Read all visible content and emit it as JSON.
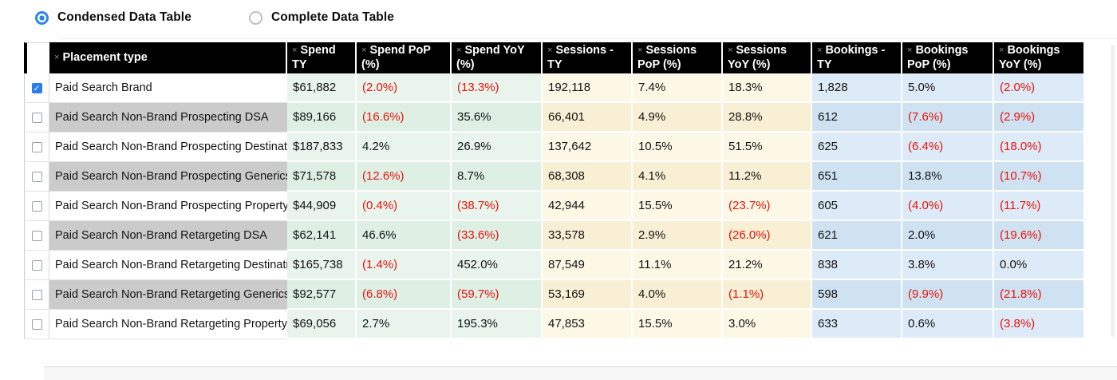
{
  "colors": {
    "accent_blue": "#2d87e9",
    "checkbox_blue": "#2b7de9",
    "negative_red": "#e8130c",
    "header_bg": "#000000",
    "spend_tint": "#e8f4ec",
    "sessions_tint": "#fdf8e6",
    "bookings_tint": "#dcebf7",
    "alt_row_gray": "#cbcbcb"
  },
  "icons": {
    "remove_column_icon": "×",
    "check_glyph": "✓"
  },
  "controls": {
    "options": [
      {
        "label": "Condensed Data Table",
        "selected": true
      },
      {
        "label": "Complete Data Table",
        "selected": false
      }
    ]
  },
  "table": {
    "columns": [
      "Placement type",
      "Spend TY",
      "Spend PoP (%)",
      "Spend YoY (%)",
      "Sessions - TY",
      "Sessions PoP (%)",
      "Sessions YoY (%)",
      "Bookings - TY",
      "Bookings PoP (%)",
      "Bookings YoY (%)"
    ],
    "rows": [
      {
        "checked": true,
        "name": "Paid Search Brand",
        "values": [
          "$61,882",
          "(2.0%)",
          "(13.3%)",
          "192,118",
          "7.4%",
          "18.3%",
          "1,828",
          "5.0%",
          "(2.0%)"
        ]
      },
      {
        "checked": false,
        "name": "Paid Search Non-Brand Prospecting DSA",
        "values": [
          "$89,166",
          "(16.6%)",
          "35.6%",
          "66,401",
          "4.9%",
          "28.8%",
          "612",
          "(7.6%)",
          "(2.9%)"
        ]
      },
      {
        "checked": false,
        "name": "Paid Search Non-Brand Prospecting Destination",
        "values": [
          "$187,833",
          "4.2%",
          "26.9%",
          "137,642",
          "10.5%",
          "51.5%",
          "625",
          "(6.4%)",
          "(18.0%)"
        ]
      },
      {
        "checked": false,
        "name": "Paid Search Non-Brand Prospecting Generics",
        "values": [
          "$71,578",
          "(12.6%)",
          "8.7%",
          "68,308",
          "4.1%",
          "11.2%",
          "651",
          "13.8%",
          "(10.7%)"
        ]
      },
      {
        "checked": false,
        "name": "Paid Search Non-Brand Prospecting Property",
        "values": [
          "$44,909",
          "(0.4%)",
          "(38.7%)",
          "42,944",
          "15.5%",
          "(23.7%)",
          "605",
          "(4.0%)",
          "(11.7%)"
        ]
      },
      {
        "checked": false,
        "name": "Paid Search Non-Brand Retargeting DSA",
        "values": [
          "$62,141",
          "46.6%",
          "(33.6%)",
          "33,578",
          "2.9%",
          "(26.0%)",
          "621",
          "2.0%",
          "(19.6%)"
        ]
      },
      {
        "checked": false,
        "name": "Paid Search Non-Brand Retargeting Destination",
        "values": [
          "$165,738",
          "(1.4%)",
          "452.0%",
          "87,549",
          "11.1%",
          "21.2%",
          "838",
          "3.8%",
          "0.0%"
        ]
      },
      {
        "checked": false,
        "name": "Paid Search Non-Brand Retargeting Generics",
        "values": [
          "$92,577",
          "(6.8%)",
          "(59.7%)",
          "53,169",
          "4.0%",
          "(1.1%)",
          "598",
          "(9.9%)",
          "(21.8%)"
        ]
      },
      {
        "checked": false,
        "name": "Paid Search Non-Brand Retargeting Property",
        "values": [
          "$69,056",
          "2.7%",
          "195.3%",
          "47,853",
          "15.5%",
          "3.0%",
          "633",
          "0.6%",
          "(3.8%)"
        ]
      }
    ]
  }
}
